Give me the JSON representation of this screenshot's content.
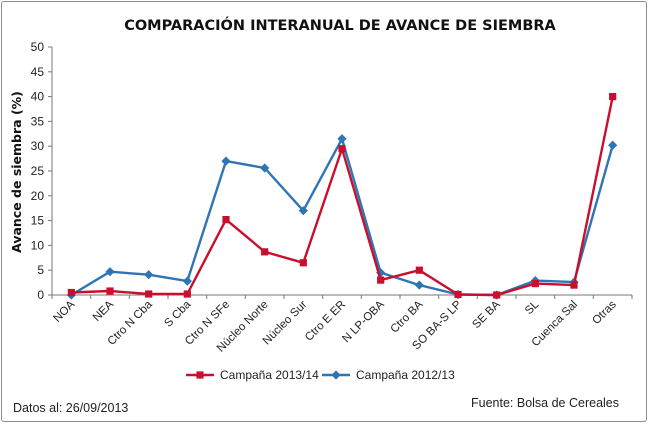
{
  "chart_data": {
    "type": "line",
    "title": "COMPARACIÓN INTERANUAL DE AVANCE DE SIEMBRA",
    "ylabel": "Avance de siembra (%)",
    "xlabel": "",
    "ylim": [
      0,
      50
    ],
    "yticks": [
      0,
      5,
      10,
      15,
      20,
      25,
      30,
      35,
      40,
      45,
      50
    ],
    "grid": false,
    "legend_position": "bottom",
    "categories": [
      "NOA",
      "NEA",
      "Ctro N Cba",
      "S Cba",
      "Ctro N SFe",
      "Núcleo Norte",
      "Núcleo Sur",
      "Ctro E ER",
      "N LP-OBA",
      "Ctro BA",
      "SO BA-S LP",
      "SE BA",
      "SL",
      "Cuenca Sal",
      "Otras"
    ],
    "series": [
      {
        "name": "Campaña 2013/14",
        "color": "#c8102e",
        "marker": "square",
        "values": [
          0.5,
          0.8,
          0.2,
          0.2,
          15.2,
          8.7,
          6.5,
          29.5,
          3.0,
          5.0,
          0.1,
          0.0,
          2.3,
          2.0,
          40.0
        ]
      },
      {
        "name": "Campaña 2012/13",
        "color": "#2e75b6",
        "marker": "diamond",
        "values": [
          0.0,
          4.7,
          4.1,
          2.8,
          27.0,
          25.6,
          17.0,
          31.5,
          4.5,
          2.0,
          0.1,
          0.0,
          2.9,
          2.6,
          30.2
        ]
      }
    ]
  },
  "footer": {
    "date_text": "Datos al: 26/09/2013",
    "source_text": "Fuente: Bolsa de Cereales"
  }
}
